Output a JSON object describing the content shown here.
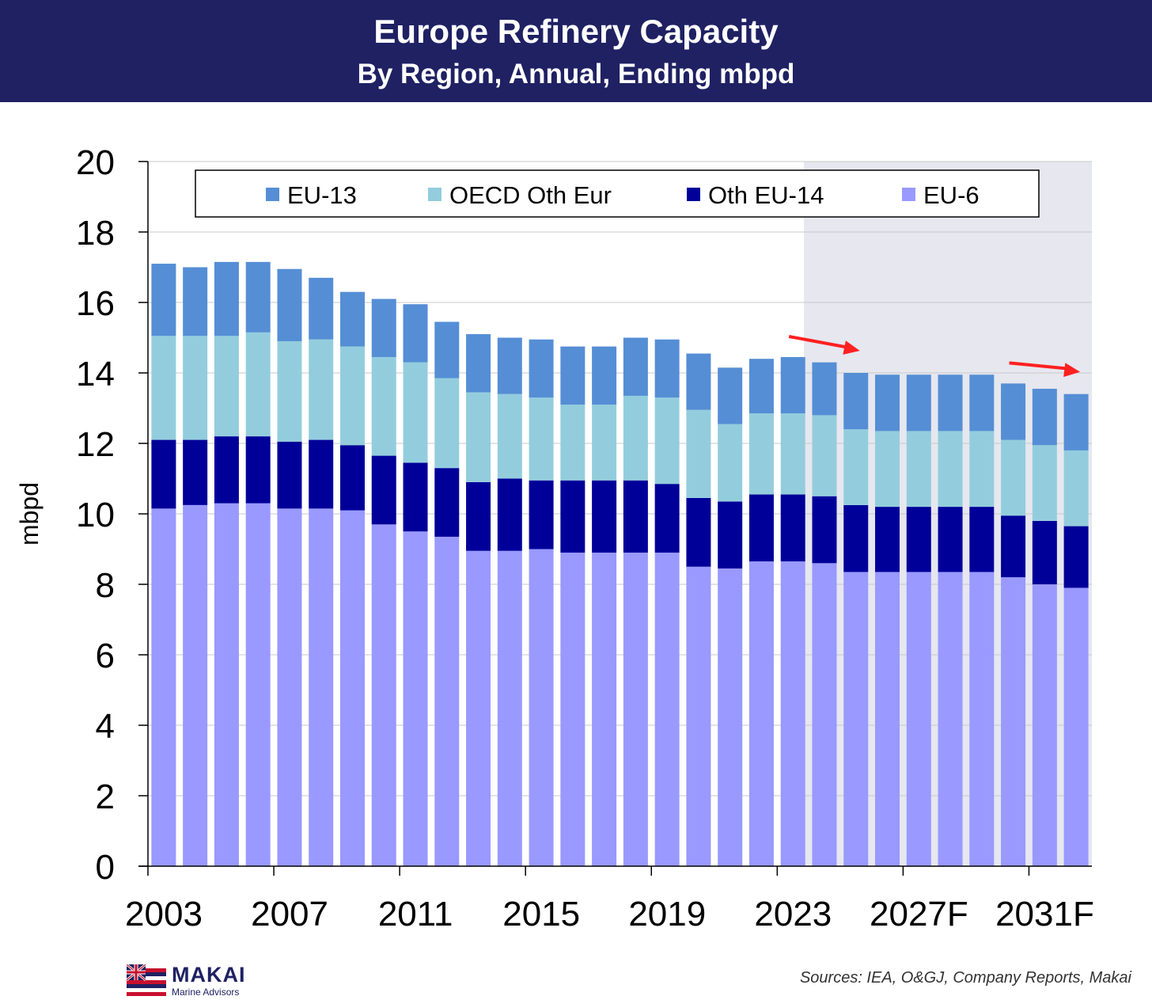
{
  "header": {
    "title": "Europe Refinery Capacity",
    "subtitle": "By Region, Annual, Ending mbpd"
  },
  "footer": {
    "logo_name": "MAKAI",
    "logo_sub": "Marine Advisors",
    "sources": "Sources: IEA, O&GJ, Company Reports, Makai"
  },
  "chart_data": {
    "type": "bar",
    "stacked": true,
    "title": "Europe Refinery Capacity",
    "subtitle": "By Region, Annual, Ending mbpd",
    "xlabel": "",
    "ylabel": "mbpd",
    "ylim": [
      0,
      20
    ],
    "yticks": [
      0,
      2,
      4,
      6,
      8,
      10,
      12,
      14,
      16,
      18,
      20
    ],
    "grid": true,
    "legend_position": "top",
    "categories": [
      "2003",
      "2004",
      "2005",
      "2006",
      "2007",
      "2008",
      "2009",
      "2010",
      "2011",
      "2012",
      "2013",
      "2014",
      "2015",
      "2016",
      "2017",
      "2018",
      "2019",
      "2020",
      "2021",
      "2022",
      "2023",
      "2024",
      "2025",
      "2026F",
      "2027F",
      "2028F",
      "2029F",
      "2030F",
      "2031F",
      "2032F"
    ],
    "x_tick_labels": [
      "2003",
      "2007",
      "2011",
      "2015",
      "2019",
      "2023",
      "2027F",
      "2031F"
    ],
    "forecast_shading_start": "2024",
    "series": [
      {
        "name": "EU-6",
        "color": "#9999ff",
        "values": [
          10.15,
          10.25,
          10.3,
          10.3,
          10.15,
          10.15,
          10.1,
          9.7,
          9.5,
          9.35,
          8.95,
          8.95,
          9.0,
          8.9,
          8.9,
          8.9,
          8.9,
          8.5,
          8.45,
          8.65,
          8.65,
          8.6,
          8.35,
          8.35,
          8.35,
          8.35,
          8.35,
          8.2,
          8.0,
          7.9
        ]
      },
      {
        "name": "Oth EU-14",
        "color": "#000099",
        "values": [
          1.95,
          1.85,
          1.9,
          1.9,
          1.9,
          1.95,
          1.85,
          1.95,
          1.95,
          1.95,
          1.95,
          2.05,
          1.95,
          2.05,
          2.05,
          2.05,
          1.95,
          1.95,
          1.9,
          1.9,
          1.9,
          1.9,
          1.9,
          1.85,
          1.85,
          1.85,
          1.85,
          1.75,
          1.8,
          1.75
        ]
      },
      {
        "name": "OECD Oth Eur",
        "color": "#93cddd",
        "values": [
          2.95,
          2.95,
          2.85,
          2.95,
          2.85,
          2.85,
          2.8,
          2.8,
          2.85,
          2.55,
          2.55,
          2.4,
          2.35,
          2.15,
          2.15,
          2.4,
          2.45,
          2.5,
          2.2,
          2.3,
          2.3,
          2.3,
          2.15,
          2.15,
          2.15,
          2.15,
          2.15,
          2.15,
          2.15,
          2.15
        ]
      },
      {
        "name": "EU-13",
        "color": "#558ed5",
        "values": [
          2.05,
          1.95,
          2.1,
          2.0,
          2.05,
          1.75,
          1.55,
          1.65,
          1.65,
          1.6,
          1.65,
          1.6,
          1.65,
          1.65,
          1.65,
          1.65,
          1.65,
          1.6,
          1.6,
          1.55,
          1.6,
          1.5,
          1.6,
          1.6,
          1.6,
          1.6,
          1.6,
          1.6,
          1.6,
          1.6
        ]
      }
    ],
    "legend_order": [
      "EU-13",
      "OECD Oth Eur",
      "Oth EU-14",
      "EU-6"
    ],
    "annotations": [
      {
        "type": "arrow",
        "color": "#ff2020",
        "from_year": "2023",
        "to_year": "2025"
      },
      {
        "type": "arrow",
        "color": "#ff2020",
        "from_year": "2030F",
        "to_year": "2032F"
      }
    ]
  }
}
